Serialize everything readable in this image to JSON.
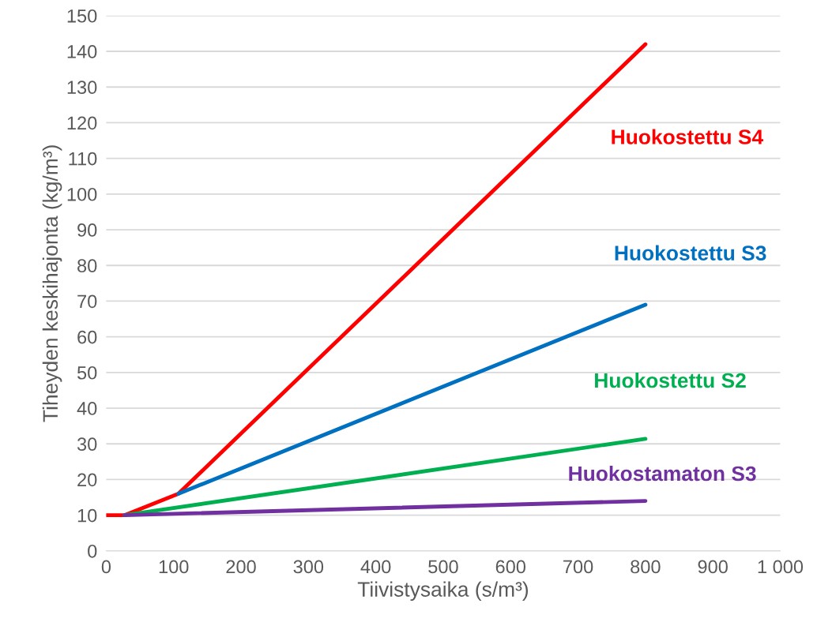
{
  "chart_data": {
    "type": "line",
    "xlabel": "Tiivistysaika (s/m³)",
    "ylabel": "Tiheyden keskihajonta (kg/m³)",
    "xlim": [
      0,
      1000
    ],
    "xticks": [
      0,
      100,
      200,
      300,
      400,
      500,
      600,
      700,
      800,
      900,
      {
        "value": 1000,
        "label": "1 000"
      }
    ],
    "ylim": [
      0,
      150
    ],
    "yticks": [
      0,
      10,
      20,
      30,
      40,
      50,
      60,
      70,
      80,
      90,
      100,
      110,
      120,
      130,
      140,
      150
    ],
    "grid": "y",
    "legend": false,
    "marker": "none",
    "line_style": "solid",
    "series": [
      {
        "name": "Huokostettu S4",
        "color": "#ff0000",
        "x": [
          0,
          27,
          107,
          800
        ],
        "values": [
          10,
          10,
          16,
          142
        ]
      },
      {
        "name": "Huokostettu S3",
        "color": "#0070c0",
        "x": [
          107,
          800
        ],
        "values": [
          16,
          69
        ]
      },
      {
        "name": "Huokostettu S2",
        "color": "#00b050",
        "x": [
          27,
          800
        ],
        "values": [
          10,
          31.4
        ]
      },
      {
        "name": "Huokostamaton S3",
        "color": "#7030a0",
        "x": [
          27,
          800
        ],
        "values": [
          10,
          14
        ]
      }
    ]
  }
}
